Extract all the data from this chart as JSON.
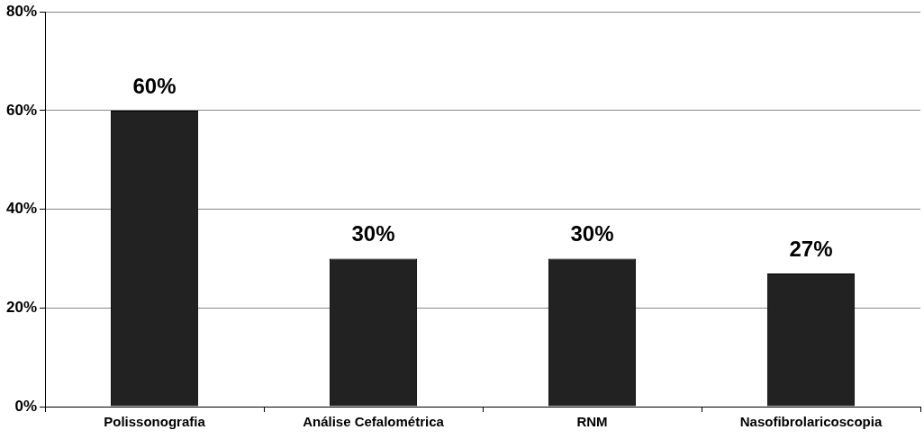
{
  "chart_data": {
    "type": "bar",
    "categories": [
      "Polissonografia",
      "Análise Cefalométrica",
      "RNM",
      "Nasofibrolaricoscopia"
    ],
    "values": [
      60,
      30,
      30,
      27
    ],
    "color": "#222222",
    "value_labels": [
      "60%",
      "30%",
      "30%",
      "27%"
    ],
    "ylim": [
      0,
      80
    ],
    "yticks": [
      {
        "value": 0,
        "label": "0%"
      },
      {
        "value": 20,
        "label": "20%"
      },
      {
        "value": 40,
        "label": "40%"
      },
      {
        "value": 60,
        "label": "60%"
      },
      {
        "value": 80,
        "label": "80%"
      }
    ],
    "grid": "y"
  }
}
